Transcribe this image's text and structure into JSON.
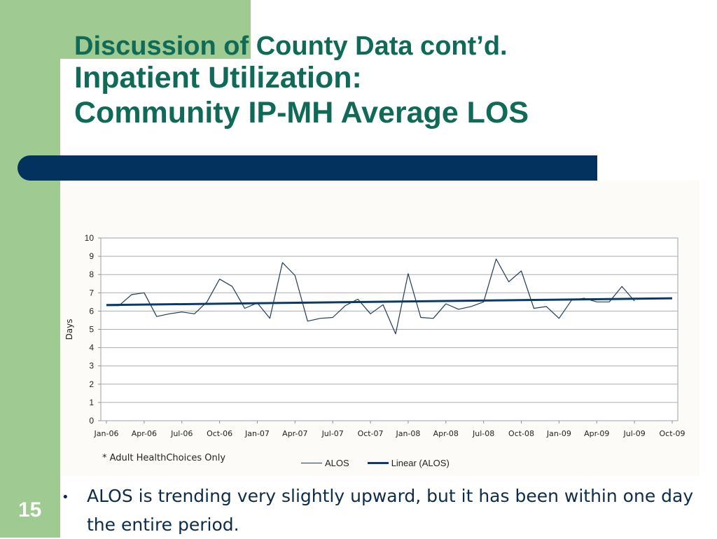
{
  "slide": {
    "title_line1": "Discussion of County Data cont’d.",
    "title_line2": "Inpatient Utilization:",
    "title_line3": "Community IP-MH Average LOS",
    "footnote": "* Adult HealthChoices Only",
    "bullet": "ALOS is trending very slightly upward, but it has been within one day the entire period.",
    "page_number": "15",
    "colors": {
      "title": "#0f6a58",
      "sidebar_green": "#9fca91",
      "navy_bar": "#03325f"
    }
  },
  "chart_data": {
    "type": "line",
    "xlabel": "",
    "ylabel": "Days",
    "ylim": [
      0,
      10
    ],
    "yticks": [
      0,
      1,
      2,
      3,
      4,
      5,
      6,
      7,
      8,
      9,
      10
    ],
    "grid": true,
    "legend_position": "bottom",
    "x_tick_labels": [
      "Jan-06",
      "Apr-06",
      "Jul-06",
      "Oct-06",
      "Jan-07",
      "Apr-07",
      "Jul-07",
      "Oct-07",
      "Jan-08",
      "Apr-08",
      "Jul-08",
      "Oct-08",
      "Jan-09",
      "Apr-09",
      "Jul-09",
      "Oct-09"
    ],
    "x": [
      "Jan-06",
      "Feb-06",
      "Mar-06",
      "Apr-06",
      "May-06",
      "Jun-06",
      "Jul-06",
      "Aug-06",
      "Sep-06",
      "Oct-06",
      "Nov-06",
      "Dec-06",
      "Jan-07",
      "Feb-07",
      "Mar-07",
      "Apr-07",
      "May-07",
      "Jun-07",
      "Jul-07",
      "Aug-07",
      "Sep-07",
      "Oct-07",
      "Nov-07",
      "Dec-07",
      "Jan-08",
      "Feb-08",
      "Mar-08",
      "Apr-08",
      "May-08",
      "Jun-08",
      "Jul-08",
      "Aug-08",
      "Sep-08",
      "Oct-08",
      "Nov-08",
      "Dec-08",
      "Jan-09",
      "Feb-09",
      "Mar-09",
      "Apr-09",
      "May-09",
      "Jun-09",
      "Jul-09",
      "Aug-09",
      "Sep-09",
      "Oct-09"
    ],
    "series": [
      {
        "name": "ALOS",
        "color": "#1f3b57",
        "values": [
          6.3,
          6.3,
          6.9,
          7.0,
          5.7,
          5.85,
          5.95,
          5.85,
          6.5,
          7.75,
          7.35,
          6.15,
          6.45,
          5.6,
          8.65,
          7.95,
          5.45,
          5.6,
          5.65,
          6.3,
          6.65,
          5.85,
          6.35,
          4.75,
          8.05,
          5.65,
          5.6,
          6.4,
          6.1,
          6.25,
          6.5,
          8.85,
          7.6,
          8.2,
          6.15,
          6.25,
          5.6,
          6.6,
          6.7,
          6.5,
          6.5,
          7.35,
          6.55,
          null,
          null,
          null
        ]
      },
      {
        "name": "Linear (ALOS)",
        "color": "#0a3a66",
        "trendline": true,
        "start": 6.33,
        "end": 6.7
      }
    ]
  }
}
